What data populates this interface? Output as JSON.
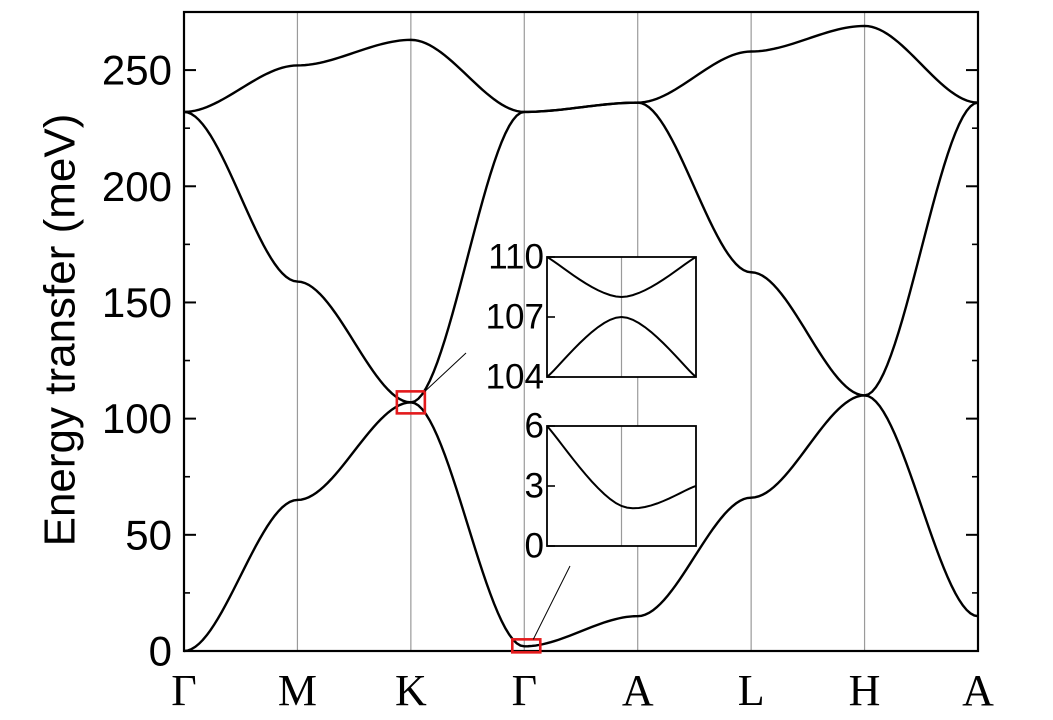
{
  "chart_data": {
    "type": "line",
    "ylabel": "Energy transfer (meV)",
    "ylim": [
      0,
      275
    ],
    "yticks": [
      "0",
      "50",
      "100",
      "150",
      "200",
      "250"
    ],
    "x_labels": [
      "Γ",
      "M",
      "K",
      "Γ",
      "A",
      "L",
      "H",
      "A"
    ],
    "series": [
      {
        "x": [
          0,
          1,
          2,
          3,
          4,
          5,
          6,
          7
        ],
        "y": [
          232,
          252,
          263,
          232,
          236,
          258,
          269,
          236
        ]
      },
      {
        "x": [
          0,
          1,
          2,
          3,
          4,
          5,
          6,
          7
        ],
        "y": [
          232,
          159,
          107,
          232,
          236,
          163,
          110,
          236
        ]
      },
      {
        "x": [
          0,
          1,
          2,
          3,
          4,
          5,
          6,
          7
        ],
        "y": [
          0,
          65,
          107,
          2,
          15,
          66,
          110,
          15
        ]
      }
    ],
    "insets": [
      {
        "ylim": [
          104,
          110
        ],
        "yticks": [
          "110",
          "107",
          "104"
        ],
        "series": [
          {
            "x": [
              0,
              1,
              2
            ],
            "y": [
              110,
              108,
              110
            ]
          },
          {
            "x": [
              0,
              1,
              2
            ],
            "y": [
              104,
              107,
              104
            ]
          }
        ]
      },
      {
        "ylim": [
          0,
          6
        ],
        "yticks": [
          "6",
          "3",
          "0"
        ],
        "series": [
          {
            "x": [
              0,
              1,
              2
            ],
            "y": [
              6,
              2,
              3
            ]
          }
        ]
      }
    ]
  }
}
